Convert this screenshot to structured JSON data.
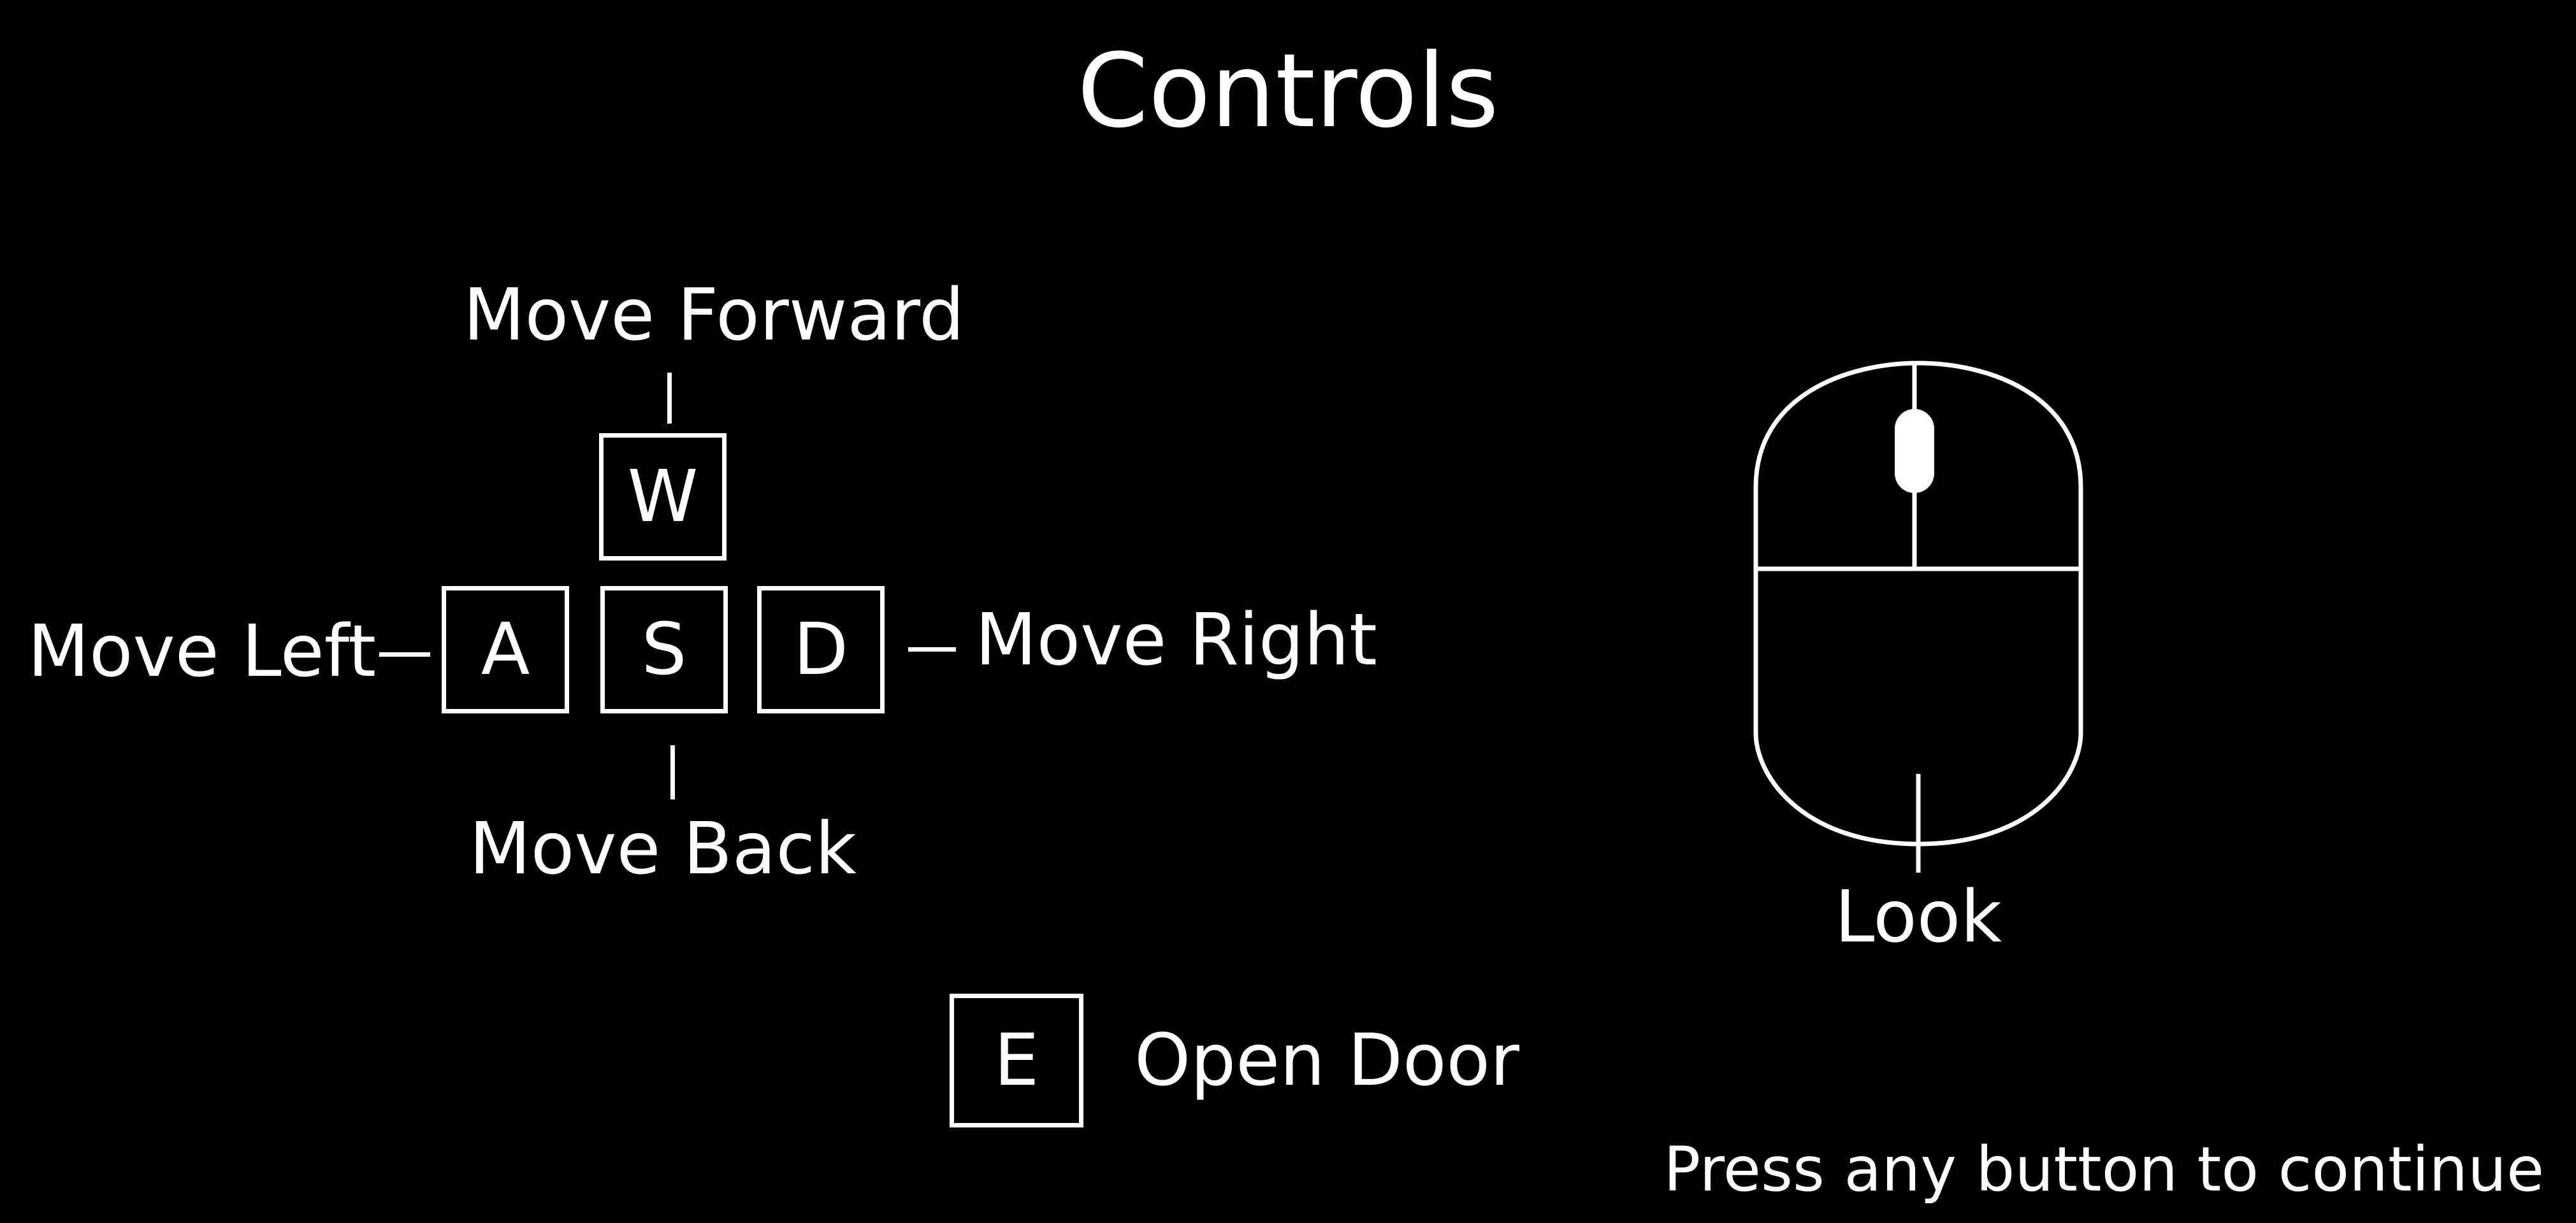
{
  "title": "Controls",
  "keys": {
    "w": {
      "key": "W",
      "action": "Move Forward"
    },
    "a": {
      "key": "A",
      "action": "Move Left"
    },
    "s": {
      "key": "S",
      "action": "Move Back"
    },
    "d": {
      "key": "D",
      "action": "Move Right"
    },
    "e": {
      "key": "E",
      "action": "Open Door"
    }
  },
  "mouse": {
    "action": "Look"
  },
  "prompt": "Press any button to continue",
  "colors": {
    "background": "#000000",
    "foreground": "#ffffff"
  }
}
